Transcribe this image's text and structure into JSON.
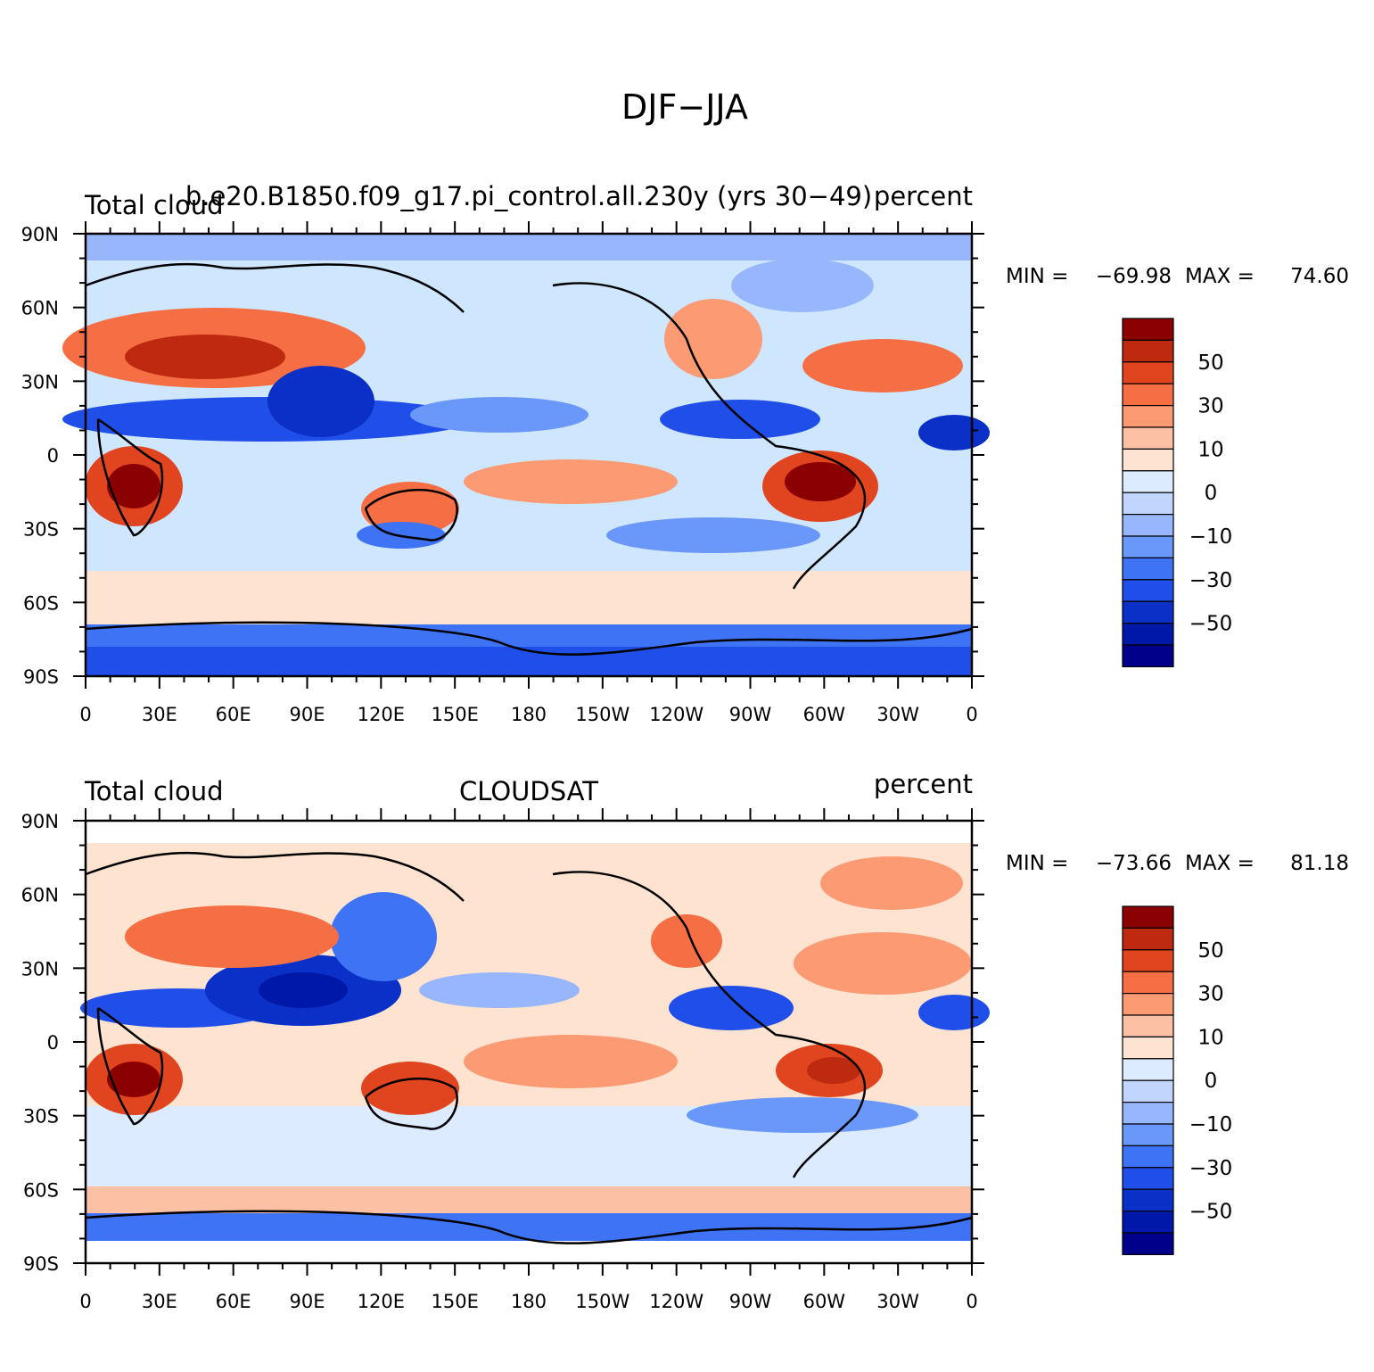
{
  "figure": {
    "title": "DJF−JJA",
    "colors": {
      "ocean_blue": "#cfe6ff",
      "land_line": "#000000"
    },
    "colorbar_levels": [
      "#00008b",
      "#0018a8",
      "#0a30c8",
      "#1f4ee8",
      "#3f73f5",
      "#6a97fa",
      "#98b6fb",
      "#c2d6fd",
      "#dcebff",
      "#fde3d0",
      "#fcc0a4",
      "#fb9a73",
      "#f66e44",
      "#e0451f",
      "#bd2a10",
      "#8b0000"
    ],
    "colorbar_labels": [
      "50",
      "30",
      "10",
      "0",
      "−10",
      "−30",
      "−50"
    ],
    "lat_labels": [
      "90N",
      "60N",
      "30N",
      "0",
      "30S",
      "60S",
      "90S"
    ],
    "lon_labels": [
      "0",
      "30E",
      "60E",
      "90E",
      "120E",
      "150E",
      "180",
      "150W",
      "120W",
      "90W",
      "60W",
      "30W",
      "0"
    ]
  },
  "panels": [
    {
      "left_label": "Total cloud",
      "center_label": "b.e20.B1850.f09_g17.pi_control.all.230y (yrs 30−49)",
      "right_label": "percent",
      "min_label": "MIN =",
      "min_value": "−69.98",
      "max_label": "MAX =",
      "max_value": "74.60"
    },
    {
      "left_label": "Total cloud",
      "center_label": "CLOUDSAT",
      "right_label": "percent",
      "min_label": "MIN =",
      "min_value": "−73.66",
      "max_label": "MAX =",
      "max_value": "81.18"
    }
  ]
}
